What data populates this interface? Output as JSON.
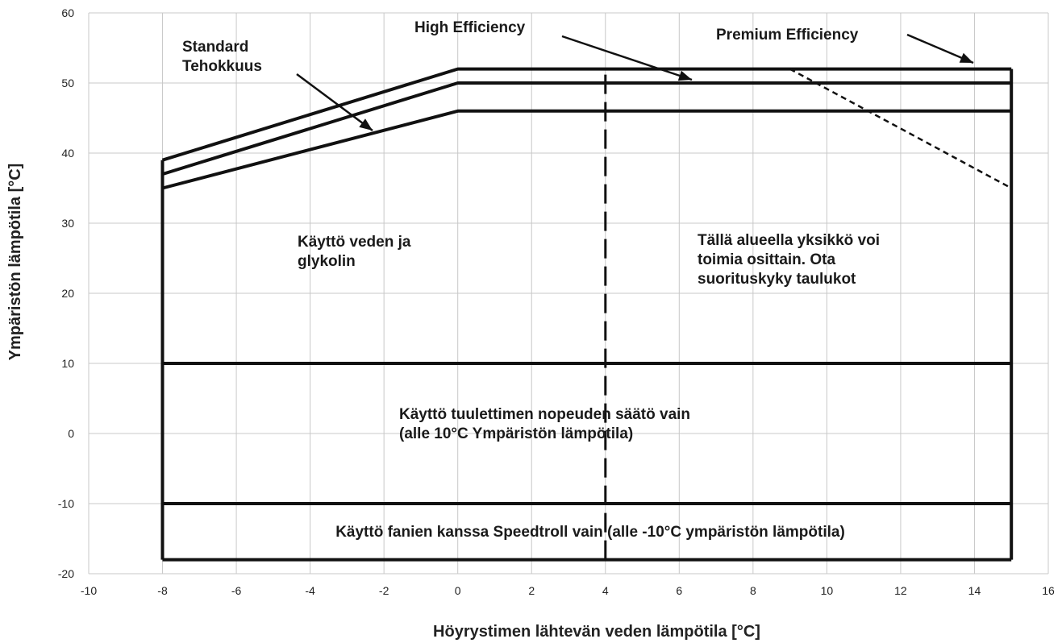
{
  "chart_data": {
    "type": "line",
    "title": "",
    "xlabel": "Höyrystimen lähtevän veden lämpötila [°C]",
    "ylabel": "Ympäristön lämpötila [°C]",
    "xlim": [
      -10,
      16
    ],
    "ylim": [
      -20,
      60
    ],
    "xticks": [
      -10,
      -8,
      -6,
      -4,
      -2,
      0,
      2,
      4,
      6,
      8,
      10,
      12,
      14,
      16
    ],
    "yticks": [
      -20,
      -10,
      0,
      10,
      20,
      30,
      40,
      50,
      60
    ],
    "grid": true,
    "series": [
      {
        "name": "Premium Efficiency",
        "x": [
          -8,
          0,
          15
        ],
        "y": [
          39,
          52,
          52
        ]
      },
      {
        "name": "High Efficiency",
        "x": [
          -8,
          0,
          15
        ],
        "y": [
          37,
          50,
          50
        ]
      },
      {
        "name": "Standard Tehokkuus",
        "x": [
          -8,
          0,
          15
        ],
        "y": [
          35,
          46,
          46
        ]
      }
    ],
    "partial_operation_boundary": {
      "x": [
        9,
        15
      ],
      "y": [
        52,
        35
      ]
    },
    "vertical_divider": {
      "x": [
        4,
        4
      ],
      "y": [
        -18,
        52
      ]
    },
    "region_lines": [
      {
        "x": [
          -8,
          15
        ],
        "y": [
          10,
          10
        ]
      },
      {
        "x": [
          -8,
          15
        ],
        "y": [
          -10,
          -10
        ]
      },
      {
        "x": [
          -8,
          15
        ],
        "y": [
          -18,
          -18
        ]
      }
    ],
    "envelope": {
      "x": [
        -8,
        -8,
        15,
        15
      ],
      "y": [
        -18,
        39,
        52,
        -18
      ]
    },
    "annotations": [
      {
        "key": "standard",
        "lines": [
          "Standard",
          "Tehokkuus"
        ]
      },
      {
        "key": "high",
        "lines": [
          "High Efficiency"
        ]
      },
      {
        "key": "premium",
        "lines": [
          "Premium Efficiency"
        ]
      },
      {
        "key": "glycol",
        "lines": [
          "Käyttö veden ja",
          "glykolin"
        ]
      },
      {
        "key": "partial",
        "lines": [
          "Tällä alueella yksikkö voi",
          "toimia osittain. Ota",
          "suorituskyky taulukot"
        ]
      },
      {
        "key": "fanspeed",
        "lines": [
          "Käyttö tuulettimen nopeuden säätö vain",
          "(alle 10°C Ympäristön lämpötila)"
        ]
      },
      {
        "key": "speedtroll",
        "lines": [
          "Käyttö fanien kanssa Speedtroll vain (alle -10°C ympäristön lämpötila)"
        ]
      }
    ]
  }
}
